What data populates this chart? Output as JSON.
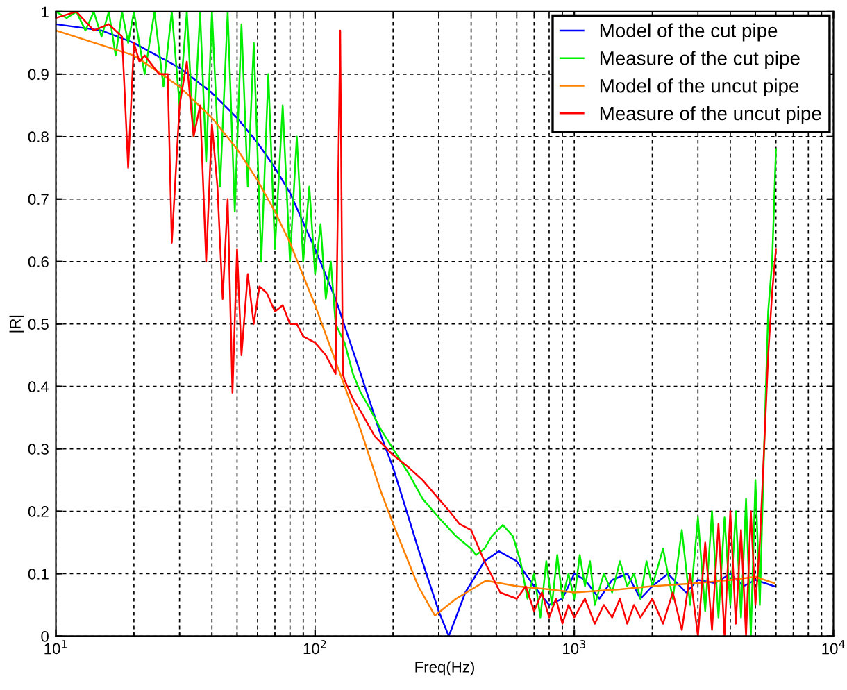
{
  "chart_data": {
    "type": "line",
    "xlabel": "Freq(Hz)",
    "ylabel": "|R|",
    "log": "x",
    "grid": true,
    "legend": "top right",
    "line_style": "solid",
    "xlim": [
      10,
      10000
    ],
    "xticks": [
      {
        "value": 10,
        "label": "10$^{1}$"
      },
      {
        "value": 100,
        "label": "10$^{2}$"
      },
      {
        "value": 1000,
        "label": "10$^{3}$"
      },
      {
        "value": 10000,
        "label": "10$^{4}$"
      }
    ],
    "ylim": [
      0,
      1
    ],
    "yticks": [
      0,
      0.1,
      0.2,
      0.3,
      0.4,
      0.5,
      0.6,
      0.7,
      0.8,
      0.9,
      1
    ],
    "series": [
      {
        "name": "Model of the cut pipe",
        "color": "#0000ff",
        "x": [
          10,
          15,
          20,
          30,
          40,
          50,
          60,
          70,
          80,
          100,
          120,
          150,
          180,
          200,
          250,
          300,
          328,
          380,
          450,
          512,
          600,
          700,
          800,
          900,
          1000,
          1100,
          1250,
          1400,
          1600,
          1800,
          2000,
          2300,
          2700,
          3000,
          3500,
          4000,
          4500,
          5000,
          5900
        ],
        "values": [
          0.98,
          0.97,
          0.95,
          0.91,
          0.87,
          0.83,
          0.79,
          0.75,
          0.71,
          0.62,
          0.54,
          0.42,
          0.32,
          0.27,
          0.14,
          0.04,
          0.0,
          0.07,
          0.12,
          0.136,
          0.12,
          0.08,
          0.05,
          0.06,
          0.1,
          0.09,
          0.06,
          0.09,
          0.1,
          0.06,
          0.08,
          0.1,
          0.07,
          0.09,
          0.085,
          0.1,
          0.08,
          0.09,
          0.08
        ]
      },
      {
        "name": "Measure of the cut pipe",
        "color": "#00ee00",
        "x": [
          10,
          11,
          12,
          13,
          14,
          15,
          16,
          17,
          18,
          19,
          20,
          22,
          24,
          26,
          28,
          30,
          32,
          34,
          36,
          38,
          40,
          43,
          46,
          49,
          52,
          55,
          58,
          62,
          66,
          70,
          75,
          80,
          85,
          90,
          95,
          100,
          105,
          110,
          115,
          120,
          130,
          140,
          150,
          160,
          180,
          200,
          230,
          260,
          300,
          350,
          400,
          418,
          450,
          480,
          530,
          580,
          620,
          660,
          700,
          740,
          780,
          820,
          860,
          900,
          950,
          1000,
          1050,
          1100,
          1150,
          1200,
          1300,
          1400,
          1500,
          1600,
          1700,
          1800,
          1900,
          2000,
          2200,
          2400,
          2600,
          2800,
          3000,
          3200,
          3400,
          3600,
          3800,
          4000,
          4200,
          4400,
          4600,
          4800,
          5000,
          5200,
          5400,
          5600,
          5800,
          6000
        ],
        "values": [
          1.0,
          0.99,
          1.0,
          0.97,
          1.0,
          0.96,
          1.0,
          0.93,
          1.0,
          0.95,
          1.0,
          0.9,
          1.0,
          0.88,
          1.0,
          0.85,
          1.0,
          0.8,
          1.0,
          0.76,
          1.0,
          0.72,
          1.0,
          0.68,
          0.98,
          0.72,
          0.95,
          0.6,
          0.9,
          0.62,
          0.85,
          0.6,
          0.8,
          0.6,
          0.72,
          0.58,
          0.66,
          0.54,
          0.6,
          0.5,
          0.47,
          0.42,
          0.39,
          0.37,
          0.33,
          0.3,
          0.26,
          0.22,
          0.19,
          0.16,
          0.14,
          0.13,
          0.14,
          0.16,
          0.178,
          0.16,
          0.12,
          0.06,
          0.1,
          0.03,
          0.12,
          0.05,
          0.13,
          0.06,
          0.1,
          0.06,
          0.13,
          0.08,
          0.12,
          0.05,
          0.1,
          0.07,
          0.12,
          0.08,
          0.1,
          0.06,
          0.12,
          0.08,
          0.14,
          0.06,
          0.17,
          0.05,
          0.19,
          0.04,
          0.2,
          0.03,
          0.19,
          0.05,
          0.2,
          0.03,
          0.22,
          0.0,
          0.25,
          0.05,
          0.3,
          0.52,
          0.6,
          0.78
        ]
      },
      {
        "name": "Model of the uncut pipe",
        "color": "#ff8000",
        "x": [
          10,
          20,
          30,
          40,
          50,
          60,
          70,
          80,
          100,
          120,
          150,
          180,
          200,
          250,
          290,
          350,
          457,
          600,
          800,
          1000,
          1500,
          2000,
          3000,
          4000,
          5000,
          5900
        ],
        "values": [
          0.97,
          0.93,
          0.88,
          0.83,
          0.78,
          0.73,
          0.68,
          0.63,
          0.53,
          0.44,
          0.33,
          0.23,
          0.18,
          0.08,
          0.033,
          0.06,
          0.089,
          0.08,
          0.075,
          0.07,
          0.075,
          0.08,
          0.085,
          0.09,
          0.095,
          0.085
        ]
      },
      {
        "name": "Measure of the uncut pipe",
        "color": "#ff0000",
        "x": [
          10,
          12,
          14,
          16,
          18,
          19,
          20,
          21,
          22,
          25,
          27,
          28,
          30,
          32,
          34,
          36,
          38,
          40,
          42,
          44,
          46,
          48,
          50,
          52,
          55,
          58,
          61,
          65,
          70,
          75,
          80,
          85,
          90,
          100,
          110,
          120,
          125,
          128,
          130,
          140,
          150,
          170,
          200,
          230,
          260,
          300,
          330,
          360,
          400,
          450,
          518,
          600,
          650,
          700,
          750,
          800,
          850,
          900,
          950,
          1000,
          1100,
          1200,
          1300,
          1400,
          1500,
          1600,
          1700,
          1800,
          2000,
          2200,
          2400,
          2600,
          2800,
          3000,
          3200,
          3400,
          3600,
          3800,
          4000,
          4200,
          4400,
          4600,
          4800,
          5000,
          5200,
          5400,
          5600,
          5800,
          6000
        ],
        "values": [
          0.99,
          1.0,
          0.97,
          0.98,
          0.96,
          0.75,
          0.95,
          0.92,
          0.93,
          0.9,
          0.9,
          0.63,
          0.85,
          0.92,
          0.8,
          0.85,
          0.6,
          0.82,
          0.72,
          0.54,
          0.7,
          0.39,
          0.62,
          0.45,
          0.58,
          0.5,
          0.56,
          0.55,
          0.52,
          0.53,
          0.5,
          0.5,
          0.48,
          0.47,
          0.45,
          0.42,
          0.97,
          0.42,
          0.41,
          0.38,
          0.36,
          0.32,
          0.29,
          0.27,
          0.25,
          0.22,
          0.2,
          0.18,
          0.17,
          0.12,
          0.07,
          0.06,
          0.08,
          0.04,
          0.07,
          0.03,
          0.06,
          0.02,
          0.05,
          0.03,
          0.06,
          0.02,
          0.05,
          0.03,
          0.06,
          0.02,
          0.05,
          0.03,
          0.06,
          0.02,
          0.07,
          0.01,
          0.1,
          0.0,
          0.15,
          0.01,
          0.18,
          0.0,
          0.2,
          0.02,
          0.17,
          0.0,
          0.2,
          0.05,
          0.15,
          0.3,
          0.45,
          0.55,
          0.62
        ]
      }
    ]
  }
}
